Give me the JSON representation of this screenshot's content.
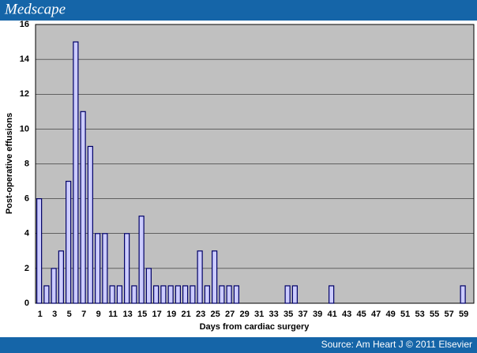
{
  "header": {
    "brand": "Medscape"
  },
  "footer": {
    "source": "Source: Am Heart J © 2011 Elsevier"
  },
  "chart_data": {
    "type": "bar",
    "x_label": "Days from cardiac surgery",
    "y_label": "Post-operative effusions",
    "categories": [
      "1",
      null,
      "3",
      null,
      "5",
      null,
      "7",
      null,
      "9",
      null,
      "11",
      null,
      "13",
      null,
      "15",
      null,
      "17",
      null,
      "19",
      null,
      "21",
      null,
      "23",
      null,
      "25",
      null,
      "27",
      null,
      "29",
      null,
      "31",
      null,
      "33",
      null,
      "35",
      null,
      "37",
      null,
      "39",
      null,
      "41",
      null,
      "43",
      null,
      "45",
      null,
      "47",
      null,
      "49",
      null,
      "51",
      null,
      "53",
      null,
      "55",
      null,
      "57",
      null,
      "59",
      null
    ],
    "values": [
      6,
      1,
      2,
      3,
      7,
      15,
      11,
      9,
      4,
      4,
      1,
      1,
      4,
      1,
      5,
      2,
      1,
      1,
      1,
      1,
      1,
      1,
      3,
      1,
      3,
      1,
      1,
      1,
      0,
      0,
      0,
      0,
      0,
      0,
      1,
      1,
      0,
      0,
      0,
      0,
      1,
      0,
      0,
      0,
      0,
      0,
      0,
      0,
      0,
      0,
      0,
      0,
      0,
      0,
      0,
      0,
      0,
      0,
      1,
      0
    ],
    "color": "#ccccff",
    "edge_color": "#000066",
    "background": "#c0c0c0",
    "ylim": [
      0,
      16
    ],
    "yticks": [
      0,
      2,
      4,
      6,
      8,
      10,
      12,
      14,
      16
    ],
    "grid": true
  }
}
